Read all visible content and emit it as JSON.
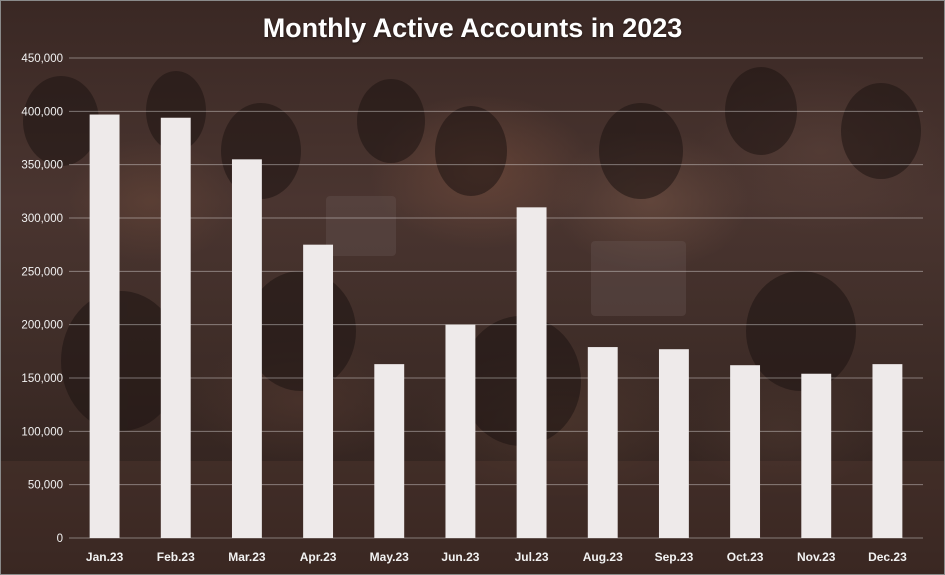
{
  "chart_data": {
    "type": "bar",
    "title": "Monthly Active Accounts in 2023",
    "xlabel": "",
    "ylabel": "",
    "ylim": [
      0,
      450000
    ],
    "y_ticks": [
      0,
      50000,
      100000,
      150000,
      200000,
      250000,
      300000,
      350000,
      400000,
      450000
    ],
    "y_tick_labels": [
      "0",
      "50,000",
      "100,000",
      "150,000",
      "200,000",
      "250,000",
      "300,000",
      "350,000",
      "400,000",
      "450,000"
    ],
    "grid": true,
    "legend": "none",
    "categories": [
      "Jan.23",
      "Feb.23",
      "Mar.23",
      "Apr.23",
      "May.23",
      "Jun.23",
      "Jul.23",
      "Aug.23",
      "Sep.23",
      "Oct.23",
      "Nov.23",
      "Dec.23"
    ],
    "values": [
      397000,
      394000,
      355000,
      275000,
      163000,
      200000,
      310000,
      179000,
      177000,
      162000,
      154000,
      163000
    ],
    "bar_color": "#eeeaea",
    "background_color": "#3a2824"
  }
}
